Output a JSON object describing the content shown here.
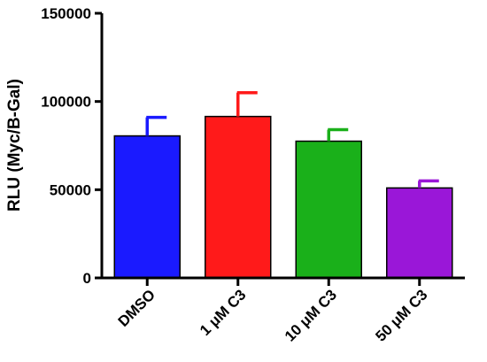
{
  "chart_data": {
    "type": "bar",
    "title": "",
    "xlabel": "",
    "ylabel": "RLU (Myc/B-Gal)",
    "ylim": [
      0,
      150000
    ],
    "yticks": [
      0,
      50000,
      100000,
      150000
    ],
    "ytick_labels": [
      "0",
      "50000",
      "100000",
      "150000"
    ],
    "grid": false,
    "categories": [
      "DMSO",
      "1 μM C3",
      "10 μM C3",
      "50 μM C3"
    ],
    "values": [
      80500,
      91500,
      77500,
      51000
    ],
    "errors": [
      10500,
      13500,
      6500,
      4000
    ],
    "colors": [
      "#1a1aff",
      "#ff1a1a",
      "#1ab01a",
      "#9a17d8"
    ]
  }
}
